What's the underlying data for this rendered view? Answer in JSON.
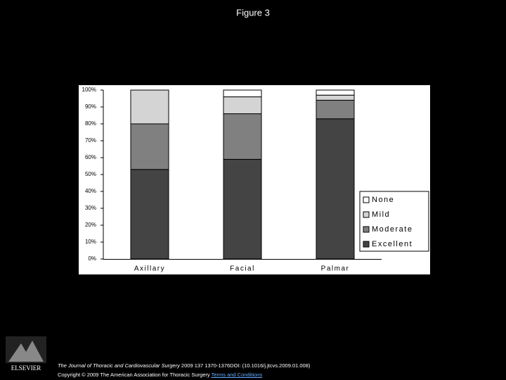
{
  "slide_title": "Figure 3",
  "chart_data": {
    "type": "stacked_bar",
    "categories": [
      "Axillary",
      "Facial",
      "Palmar"
    ],
    "series": [
      {
        "name": "Excellent",
        "color": "#444444",
        "values": [
          53,
          59,
          83
        ]
      },
      {
        "name": "Moderate",
        "color": "#808080",
        "values": [
          27,
          27,
          11
        ]
      },
      {
        "name": "Mild",
        "color": "#d4d4d4",
        "values": [
          20,
          10,
          3
        ]
      },
      {
        "name": "None",
        "color": "#ffffff",
        "values": [
          0,
          4,
          3
        ]
      }
    ],
    "ylim": [
      0,
      100
    ],
    "yticks": [
      {
        "value": 0,
        "label": "0%"
      },
      {
        "value": 10,
        "label": "10%"
      },
      {
        "value": 20,
        "label": "20%"
      },
      {
        "value": 30,
        "label": "30%"
      },
      {
        "value": 40,
        "label": "40%"
      },
      {
        "value": 50,
        "label": "50%"
      },
      {
        "value": 60,
        "label": "60%"
      },
      {
        "value": 70,
        "label": "70%"
      },
      {
        "value": 80,
        "label": "80%"
      },
      {
        "value": 90,
        "label": "90%"
      },
      {
        "value": 100,
        "label": "100%"
      }
    ],
    "grid": false,
    "legend": "right"
  },
  "footer": {
    "journal": "The Journal of Thoracic and Cardiovascular Surgery",
    "citation": " 2009 137 1370-1376DOI: (10.1016/j.jtcvs.2009.01.008)",
    "copyright": "Copyright © 2009 The American Association for Thoracic Surgery ",
    "link": "Terms and Conditions"
  },
  "logo": "ELSEVIER"
}
